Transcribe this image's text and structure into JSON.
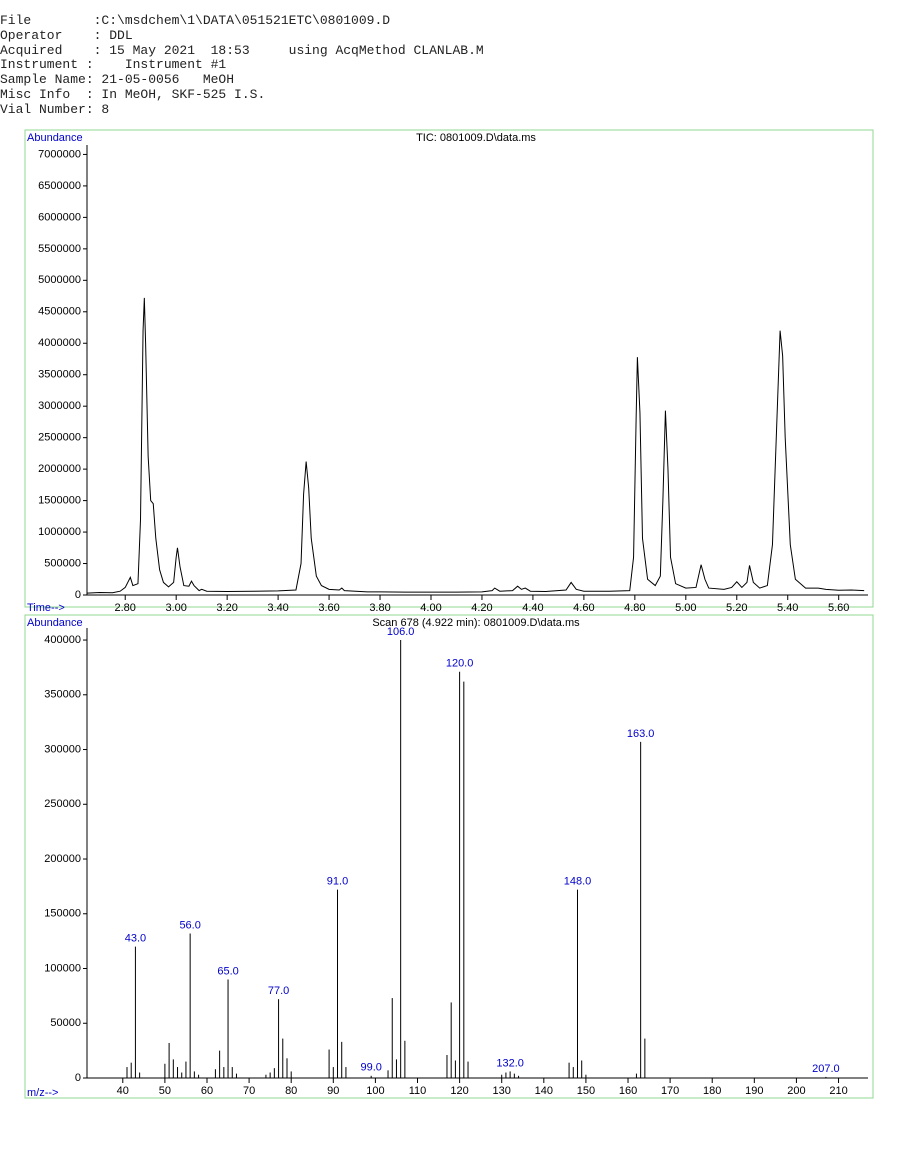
{
  "header": {
    "lines": [
      "File        :C:\\msdchem\\1\\DATA\\051521ETC\\0801009.D",
      "Operator    : DDL",
      "Acquired    : 15 May 2021  18:53     using AcqMethod CLANLAB.M",
      "Instrument :    Instrument #1",
      "Sample Name: 21-05-0056   MeOH",
      "Misc Info  : In MeOH, SKF-525 I.S.",
      "Vial Number: 8"
    ]
  },
  "chart_data": [
    {
      "type": "line",
      "title": "TIC: 0801009.D\\data.ms",
      "y_label": "Abundance",
      "x_label": "Time-->",
      "color": "#000000",
      "xlim": [
        2.65,
        5.715
      ],
      "ylim": [
        0,
        7150000
      ],
      "xticks": [
        {
          "value": 2.8,
          "label": "2.80"
        },
        {
          "value": 3.0,
          "label": "3.00"
        },
        {
          "value": 3.2,
          "label": "3.20"
        },
        {
          "value": 3.4,
          "label": "3.40"
        },
        {
          "value": 3.6,
          "label": "3.60"
        },
        {
          "value": 3.8,
          "label": "3.80"
        },
        {
          "value": 4.0,
          "label": "4.00"
        },
        {
          "value": 4.2,
          "label": "4.20"
        },
        {
          "value": 4.4,
          "label": "4.40"
        },
        {
          "value": 4.6,
          "label": "4.60"
        },
        {
          "value": 4.8,
          "label": "4.80"
        },
        {
          "value": 5.0,
          "label": "5.00"
        },
        {
          "value": 5.2,
          "label": "5.20"
        },
        {
          "value": 5.4,
          "label": "5.40"
        },
        {
          "value": 5.6,
          "label": "5.60"
        }
      ],
      "yticks": [
        0,
        500000,
        1000000,
        1500000,
        2000000,
        2500000,
        3000000,
        3500000,
        4000000,
        4500000,
        5000000,
        5500000,
        6000000,
        6500000,
        7000000
      ],
      "x": [
        2.65,
        2.7,
        2.75,
        2.78,
        2.8,
        2.82,
        2.83,
        2.85,
        2.86,
        2.87,
        2.875,
        2.88,
        2.89,
        2.9,
        2.91,
        2.92,
        2.935,
        2.95,
        2.97,
        2.99,
        3.0,
        3.005,
        3.015,
        3.03,
        3.05,
        3.06,
        3.07,
        3.09,
        3.1,
        3.12,
        3.2,
        3.3,
        3.4,
        3.47,
        3.49,
        3.5,
        3.51,
        3.52,
        3.53,
        3.55,
        3.57,
        3.6,
        3.64,
        3.65,
        3.66,
        3.75,
        3.8,
        3.9,
        4.0,
        4.1,
        4.2,
        4.24,
        4.25,
        4.27,
        4.32,
        4.34,
        4.355,
        4.37,
        4.39,
        4.45,
        4.53,
        4.55,
        4.57,
        4.6,
        4.7,
        4.78,
        4.795,
        4.805,
        4.81,
        4.82,
        4.83,
        4.85,
        4.88,
        4.9,
        4.91,
        4.92,
        4.93,
        4.94,
        4.96,
        5.0,
        5.04,
        5.06,
        5.075,
        5.09,
        5.15,
        5.18,
        5.2,
        5.22,
        5.24,
        5.25,
        5.265,
        5.29,
        5.32,
        5.34,
        5.355,
        5.37,
        5.38,
        5.39,
        5.41,
        5.43,
        5.47,
        5.52,
        5.55,
        5.6,
        5.65,
        5.7
      ],
      "values": [
        30000,
        40000,
        35000,
        60000,
        120000,
        280000,
        150000,
        180000,
        1200000,
        4200000,
        4720000,
        4000000,
        2200000,
        1500000,
        1450000,
        900000,
        400000,
        200000,
        130000,
        200000,
        600000,
        750000,
        450000,
        150000,
        140000,
        220000,
        150000,
        70000,
        90000,
        60000,
        55000,
        60000,
        65000,
        80000,
        500000,
        1600000,
        2120000,
        1700000,
        900000,
        300000,
        150000,
        90000,
        80000,
        110000,
        70000,
        50000,
        50000,
        45000,
        45000,
        45000,
        50000,
        70000,
        110000,
        60000,
        70000,
        140000,
        90000,
        110000,
        60000,
        55000,
        80000,
        200000,
        90000,
        60000,
        60000,
        70000,
        600000,
        2800000,
        3780000,
        2900000,
        900000,
        250000,
        150000,
        300000,
        1500000,
        2930000,
        2000000,
        600000,
        180000,
        110000,
        120000,
        480000,
        250000,
        110000,
        90000,
        120000,
        210000,
        120000,
        200000,
        470000,
        200000,
        110000,
        150000,
        800000,
        2500000,
        4200000,
        3800000,
        2500000,
        800000,
        250000,
        110000,
        110000,
        90000,
        75000,
        80000,
        70000
      ]
    },
    {
      "type": "bar",
      "title": "Scan 678 (4.922 min): 0801009.D\\data.ms",
      "y_label": "Abundance",
      "x_label": "m/z-->",
      "color": "#000000",
      "label_color": "#0000cc",
      "xlim": [
        31.5,
        217
      ],
      "ylim": [
        0,
        411000
      ],
      "xticks": [
        40,
        50,
        60,
        70,
        80,
        90,
        100,
        110,
        120,
        130,
        140,
        150,
        160,
        170,
        180,
        190,
        200,
        210
      ],
      "yticks": [
        0,
        50000,
        100000,
        150000,
        200000,
        250000,
        300000,
        350000,
        400000
      ],
      "x": [
        41,
        42,
        43,
        44,
        50,
        51,
        52,
        53,
        54,
        55,
        56,
        57,
        58,
        62,
        63,
        64,
        65,
        66,
        67,
        74,
        75,
        76,
        77,
        78,
        79,
        80,
        89,
        90,
        91,
        92,
        93,
        99,
        103,
        104,
        105,
        106,
        107,
        117,
        118,
        119,
        120,
        121,
        122,
        130,
        131,
        132,
        133,
        134,
        146,
        147,
        148,
        149,
        150,
        162,
        163,
        164,
        207
      ],
      "values": [
        10000,
        14000,
        120000,
        5000,
        13000,
        32000,
        17000,
        10000,
        5000,
        15000,
        132000,
        6000,
        3000,
        8000,
        25000,
        10000,
        90000,
        10000,
        4000,
        3000,
        5000,
        9000,
        72000,
        36000,
        18000,
        6000,
        26000,
        10000,
        172000,
        33000,
        10000,
        2000,
        7000,
        73000,
        17000,
        400000,
        34000,
        21000,
        69000,
        16000,
        371000,
        362000,
        15000,
        3000,
        5000,
        6000,
        4000,
        2000,
        14000,
        10000,
        172000,
        16000,
        3000,
        4000,
        307000,
        36000,
        1000
      ],
      "x_labels": [
        null,
        null,
        "43.0",
        null,
        null,
        null,
        null,
        null,
        null,
        null,
        "56.0",
        null,
        null,
        null,
        null,
        null,
        "65.0",
        null,
        null,
        null,
        null,
        null,
        "77.0",
        null,
        null,
        null,
        null,
        null,
        "91.0",
        null,
        null,
        "99.0",
        null,
        null,
        null,
        "106.0",
        null,
        null,
        null,
        null,
        "120.0",
        null,
        null,
        null,
        null,
        "132.0",
        null,
        null,
        null,
        null,
        "148.0",
        null,
        null,
        null,
        "163.0",
        null,
        "207.0"
      ]
    }
  ]
}
